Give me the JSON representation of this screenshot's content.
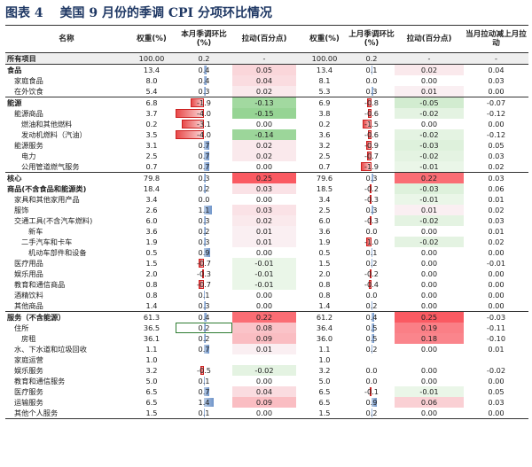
{
  "title": {
    "label": "图表 4",
    "text": "美国 9 月份的季调 CPI 分项环比情况"
  },
  "columns": [
    "名称",
    "权重(%)",
    "本月季调环比(%)",
    "拉动(百分点)",
    "权重(%)",
    "上月季调环比(%)",
    "拉动(百分点)",
    "当月拉动减上月拉动"
  ],
  "rows": [
    {
      "name": "所有项目",
      "indent": 0,
      "bold": true,
      "hl": true,
      "w1": "100.00",
      "m1": "0.2",
      "p1": "-",
      "w2": "100.00",
      "m2": "0.2",
      "p2": "-",
      "d": "-"
    },
    {
      "name": "食品",
      "indent": 0,
      "bold": true,
      "sect": true,
      "w1": "13.4",
      "m1": "0.4",
      "p1": "0.05",
      "w2": "13.4",
      "m2": "0.1",
      "p2": "0.02",
      "d": "0.04"
    },
    {
      "name": "家庭食品",
      "indent": 1,
      "w1": "8.0",
      "m1": "0.4",
      "p1": "0.04",
      "w2": "8.1",
      "m2": "0.0",
      "p2": "0.00",
      "d": "0.03"
    },
    {
      "name": "在外饮食",
      "indent": 1,
      "w1": "5.4",
      "m1": "0.3",
      "p1": "0.02",
      "w2": "5.3",
      "m2": "0.3",
      "p2": "0.01",
      "d": "0.00"
    },
    {
      "name": "能源",
      "indent": 0,
      "bold": true,
      "sect": true,
      "w1": "6.8",
      "m1": "-1.9",
      "p1": "-0.13",
      "w2": "6.9",
      "m2": "-0.8",
      "p2": "-0.05",
      "d": "-0.07"
    },
    {
      "name": "能源商品",
      "indent": 1,
      "w1": "3.7",
      "m1": "-4.0",
      "p1": "-0.15",
      "w2": "3.8",
      "m2": "-0.6",
      "p2": "-0.02",
      "d": "-0.12"
    },
    {
      "name": "燃油和其他燃料",
      "indent": 2,
      "w1": "0.2",
      "m1": "-3.1",
      "p1": "0.00",
      "w2": "0.2",
      "m2": "-1.5",
      "p2": "0.00",
      "d": "0.00"
    },
    {
      "name": "发动机燃料（汽油）",
      "indent": 2,
      "w1": "3.5",
      "m1": "-4.0",
      "p1": "-0.14",
      "w2": "3.6",
      "m2": "-0.6",
      "p2": "-0.02",
      "d": "-0.12"
    },
    {
      "name": "能源服务",
      "indent": 1,
      "w1": "3.1",
      "m1": "0.7",
      "p1": "0.02",
      "w2": "3.2",
      "m2": "-0.9",
      "p2": "-0.03",
      "d": "0.05"
    },
    {
      "name": "电力",
      "indent": 2,
      "w1": "2.5",
      "m1": "0.7",
      "p1": "0.02",
      "w2": "2.5",
      "m2": "-0.7",
      "p2": "-0.02",
      "d": "0.03"
    },
    {
      "name": "公用管道燃气服务",
      "indent": 2,
      "w1": "0.7",
      "m1": "0.7",
      "p1": "0.00",
      "w2": "0.7",
      "m2": "-1.9",
      "p2": "-0.01",
      "d": "0.02"
    },
    {
      "name": "核心",
      "indent": 0,
      "bold": true,
      "sect": true,
      "w1": "79.8",
      "m1": "0.3",
      "p1": "0.25",
      "w2": "79.6",
      "m2": "0.3",
      "p2": "0.22",
      "d": "0.03"
    },
    {
      "name": "商品(不含食品和能源类)",
      "indent": 0,
      "bold": true,
      "w1": "18.4",
      "m1": "0.2",
      "p1": "0.03",
      "w2": "18.5",
      "m2": "-0.2",
      "p2": "-0.03",
      "d": "0.06"
    },
    {
      "name": "家具和其他家用产品",
      "indent": 1,
      "w1": "3.4",
      "m1": "0.0",
      "p1": "0.00",
      "w2": "3.4",
      "m2": "-0.3",
      "p2": "-0.01",
      "d": "0.01"
    },
    {
      "name": "服饰",
      "indent": 1,
      "w1": "2.6",
      "m1": "1.1",
      "p1": "0.03",
      "w2": "2.5",
      "m2": "0.3",
      "p2": "0.01",
      "d": "0.02"
    },
    {
      "name": "交通工具(不含汽车燃料)",
      "indent": 1,
      "w1": "6.0",
      "m1": "0.3",
      "p1": "0.02",
      "w2": "6.0",
      "m2": "-0.3",
      "p2": "-0.02",
      "d": "0.03"
    },
    {
      "name": "新车",
      "indent": 3,
      "w1": "3.6",
      "m1": "0.2",
      "p1": "0.01",
      "w2": "3.6",
      "m2": "0.0",
      "p2": "0.00",
      "d": "0.01"
    },
    {
      "name": "二手汽车和卡车",
      "indent": 2,
      "w1": "1.9",
      "m1": "0.3",
      "p1": "0.01",
      "w2": "1.9",
      "m2": "-1.0",
      "p2": "-0.02",
      "d": "0.02"
    },
    {
      "name": "机动车部件和设备",
      "indent": 3,
      "w1": "0.5",
      "m1": "0.9",
      "p1": "0.00",
      "w2": "0.5",
      "m2": "0.1",
      "p2": "0.00",
      "d": "0.00"
    },
    {
      "name": "医疗用品",
      "indent": 1,
      "w1": "1.5",
      "m1": "-0.7",
      "p1": "-0.01",
      "w2": "1.5",
      "m2": "0.2",
      "p2": "0.00",
      "d": "-0.01"
    },
    {
      "name": "娱乐用品",
      "indent": 1,
      "w1": "2.0",
      "m1": "-0.3",
      "p1": "-0.01",
      "w2": "2.0",
      "m2": "-0.2",
      "p2": "0.00",
      "d": "0.00"
    },
    {
      "name": "教育和通信商品",
      "indent": 1,
      "w1": "0.8",
      "m1": "-0.7",
      "p1": "-0.01",
      "w2": "0.8",
      "m2": "-0.4",
      "p2": "0.00",
      "d": "0.00"
    },
    {
      "name": "酒精饮料",
      "indent": 1,
      "w1": "0.8",
      "m1": "0.1",
      "p1": "0.00",
      "w2": "0.8",
      "m2": "0.0",
      "p2": "0.00",
      "d": "0.00"
    },
    {
      "name": "其他商品",
      "indent": 1,
      "w1": "1.4",
      "m1": "0.3",
      "p1": "0.00",
      "w2": "1.4",
      "m2": "0.2",
      "p2": "0.00",
      "d": "0.00"
    },
    {
      "name": "服务（不含能源）",
      "indent": 0,
      "bold": true,
      "sect": true,
      "w1": "61.3",
      "m1": "0.4",
      "p1": "0.22",
      "w2": "61.2",
      "m2": "0.4",
      "p2": "0.25",
      "d": "-0.03"
    },
    {
      "name": "住所",
      "indent": 1,
      "w1": "36.5",
      "m1": "0.2",
      "p1": "0.08",
      "w2": "36.4",
      "m2": "0.5",
      "p2": "0.19",
      "d": "-0.11",
      "sel": true
    },
    {
      "name": "房租",
      "indent": 2,
      "w1": "36.1",
      "m1": "0.2",
      "p1": "0.09",
      "w2": "36.0",
      "m2": "0.5",
      "p2": "0.18",
      "d": "-0.10"
    },
    {
      "name": "水、下水道和垃圾回收",
      "indent": 1,
      "w1": "1.1",
      "m1": "0.7",
      "p1": "0.01",
      "w2": "1.1",
      "m2": "0.2",
      "p2": "0.00",
      "d": "0.01"
    },
    {
      "name": "家庭运营",
      "indent": 1,
      "w1": "1.0",
      "m1": "",
      "p1": "",
      "w2": "1.0",
      "m2": "",
      "p2": "",
      "d": ""
    },
    {
      "name": "娱乐服务",
      "indent": 1,
      "w1": "3.2",
      "m1": "-0.5",
      "p1": "-0.02",
      "w2": "3.2",
      "m2": "0.0",
      "p2": "0.00",
      "d": "-0.02"
    },
    {
      "name": "教育和通信服务",
      "indent": 1,
      "w1": "5.0",
      "m1": "0.1",
      "p1": "0.00",
      "w2": "5.0",
      "m2": "0.0",
      "p2": "0.00",
      "d": "0.00"
    },
    {
      "name": "医疗服务",
      "indent": 1,
      "w1": "6.5",
      "m1": "0.7",
      "p1": "0.04",
      "w2": "6.5",
      "m2": "-0.1",
      "p2": "-0.01",
      "d": "0.05"
    },
    {
      "name": "运输服务",
      "indent": 1,
      "w1": "6.5",
      "m1": "1.4",
      "p1": "0.09",
      "w2": "6.5",
      "m2": "0.9",
      "p2": "0.06",
      "d": "0.03"
    },
    {
      "name": "其他个人服务",
      "indent": 1,
      "w1": "1.5",
      "m1": "0.1",
      "p1": "0.00",
      "w2": "1.5",
      "m2": "0.2",
      "p2": "0.00",
      "d": "0.00"
    }
  ]
}
